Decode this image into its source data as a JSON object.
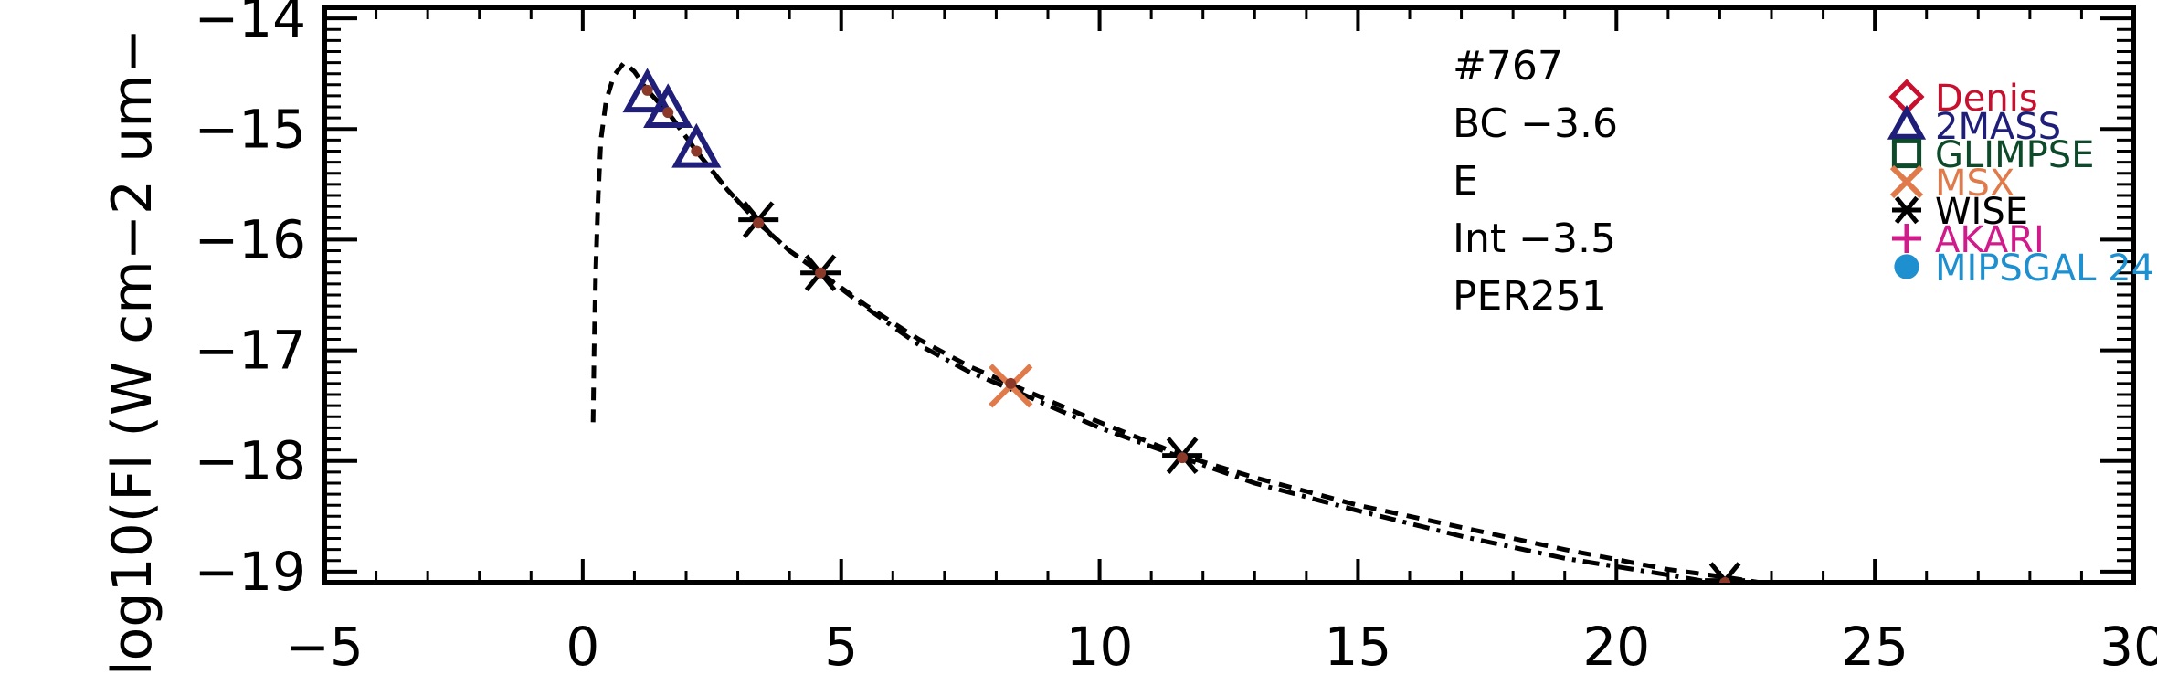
{
  "chart_data": {
    "type": "scatter",
    "title": "",
    "xlabel": "",
    "ylabel": "log10(Fl (W cm−2 um−",
    "xlim": [
      -5,
      30
    ],
    "ylim": [
      -19.1,
      -13.9
    ],
    "x_ticks": [
      -5,
      0,
      5,
      10,
      15,
      20,
      25,
      30
    ],
    "x_tick_labels": [
      "−5",
      "0",
      "5",
      "10",
      "15",
      "20",
      "25",
      "30"
    ],
    "y_ticks": [
      -14,
      -15,
      -16,
      -17,
      -18,
      -19
    ],
    "y_tick_labels": [
      "−14",
      "−15",
      "−16",
      "−17",
      "−18",
      "−19"
    ],
    "grid": false,
    "annotations": [
      "#767",
      "BC −3.6",
      "E",
      "Int −3.5",
      "PER251"
    ],
    "legend": {
      "placement": "top-right",
      "entries": [
        {
          "label": "Denis",
          "marker": "diamond",
          "color": "#c8102e"
        },
        {
          "label": "2MASS",
          "marker": "triangle",
          "color": "#1f1f7a"
        },
        {
          "label": "GLIMPSE",
          "marker": "square",
          "color": "#0d4a2a"
        },
        {
          "label": "MSX",
          "marker": "cross",
          "color": "#e07a4a"
        },
        {
          "label": "WISE",
          "marker": "asterisk",
          "color": "#000000"
        },
        {
          "label": "AKARI",
          "marker": "plus",
          "color": "#d01c8b"
        },
        {
          "label": "MIPSGAL 24",
          "marker": "circle",
          "color": "#1e90d0"
        }
      ]
    },
    "series": [
      {
        "style": "dashed",
        "color": "#000000",
        "x": [
          0.2,
          0.22,
          0.25,
          0.3,
          0.35,
          0.45,
          0.6,
          0.8,
          1.0,
          1.25,
          1.65,
          2.2,
          2.8,
          3.4,
          4.0,
          4.6,
          5.5,
          6.5,
          7.5,
          8.5,
          10,
          11.6,
          13,
          15,
          17,
          19,
          21,
          22.1,
          23.5
        ],
        "y": [
          -17.65,
          -17.0,
          -16.3,
          -15.6,
          -15.1,
          -14.75,
          -14.52,
          -14.4,
          -14.48,
          -14.65,
          -14.85,
          -15.2,
          -15.55,
          -15.85,
          -16.1,
          -16.3,
          -16.6,
          -16.9,
          -17.15,
          -17.35,
          -17.65,
          -17.95,
          -18.15,
          -18.4,
          -18.6,
          -18.8,
          -18.98,
          -19.05,
          -19.15
        ]
      },
      {
        "style": "dash-dot",
        "color": "#000000",
        "x": [
          1.25,
          1.65,
          2.2,
          2.8,
          3.4,
          4.0,
          4.6,
          5.5,
          6.5,
          7.5,
          8.28,
          10,
          11.6,
          13,
          15,
          17,
          19,
          21,
          22.1,
          23.5
        ],
        "y": [
          -14.65,
          -14.85,
          -15.2,
          -15.55,
          -15.85,
          -16.1,
          -16.3,
          -16.62,
          -16.95,
          -17.2,
          -17.35,
          -17.7,
          -17.97,
          -18.2,
          -18.45,
          -18.68,
          -18.88,
          -19.03,
          -19.12,
          -19.2
        ]
      }
    ],
    "points": [
      {
        "source": "2MASS",
        "marker": "triangle",
        "color": "#1f1f7a",
        "x": 1.25,
        "y": -14.68
      },
      {
        "source": "2MASS",
        "marker": "triangle",
        "color": "#1f1f7a",
        "x": 1.65,
        "y": -14.82
      },
      {
        "source": "2MASS",
        "marker": "triangle",
        "color": "#1f1f7a",
        "x": 2.2,
        "y": -15.18
      },
      {
        "source": "WISE",
        "marker": "asterisk",
        "color": "#000000",
        "x": 3.4,
        "y": -15.82
      },
      {
        "source": "WISE",
        "marker": "asterisk",
        "color": "#000000",
        "x": 4.6,
        "y": -16.3
      },
      {
        "source": "MSX",
        "marker": "cross",
        "color": "#e07a4a",
        "x": 8.28,
        "y": -17.32
      },
      {
        "source": "WISE",
        "marker": "asterisk",
        "color": "#000000",
        "x": 11.6,
        "y": -17.95
      },
      {
        "source": "WISE",
        "marker": "asterisk",
        "color": "#000000",
        "x": 22.1,
        "y": -19.08
      }
    ],
    "model_points": {
      "color": "#8b3a2a",
      "x": [
        1.25,
        1.65,
        2.2,
        3.4,
        4.6,
        8.28,
        11.6,
        22.1
      ],
      "y": [
        -14.65,
        -14.85,
        -15.2,
        -15.85,
        -16.3,
        -17.3,
        -17.97,
        -19.1
      ]
    }
  }
}
